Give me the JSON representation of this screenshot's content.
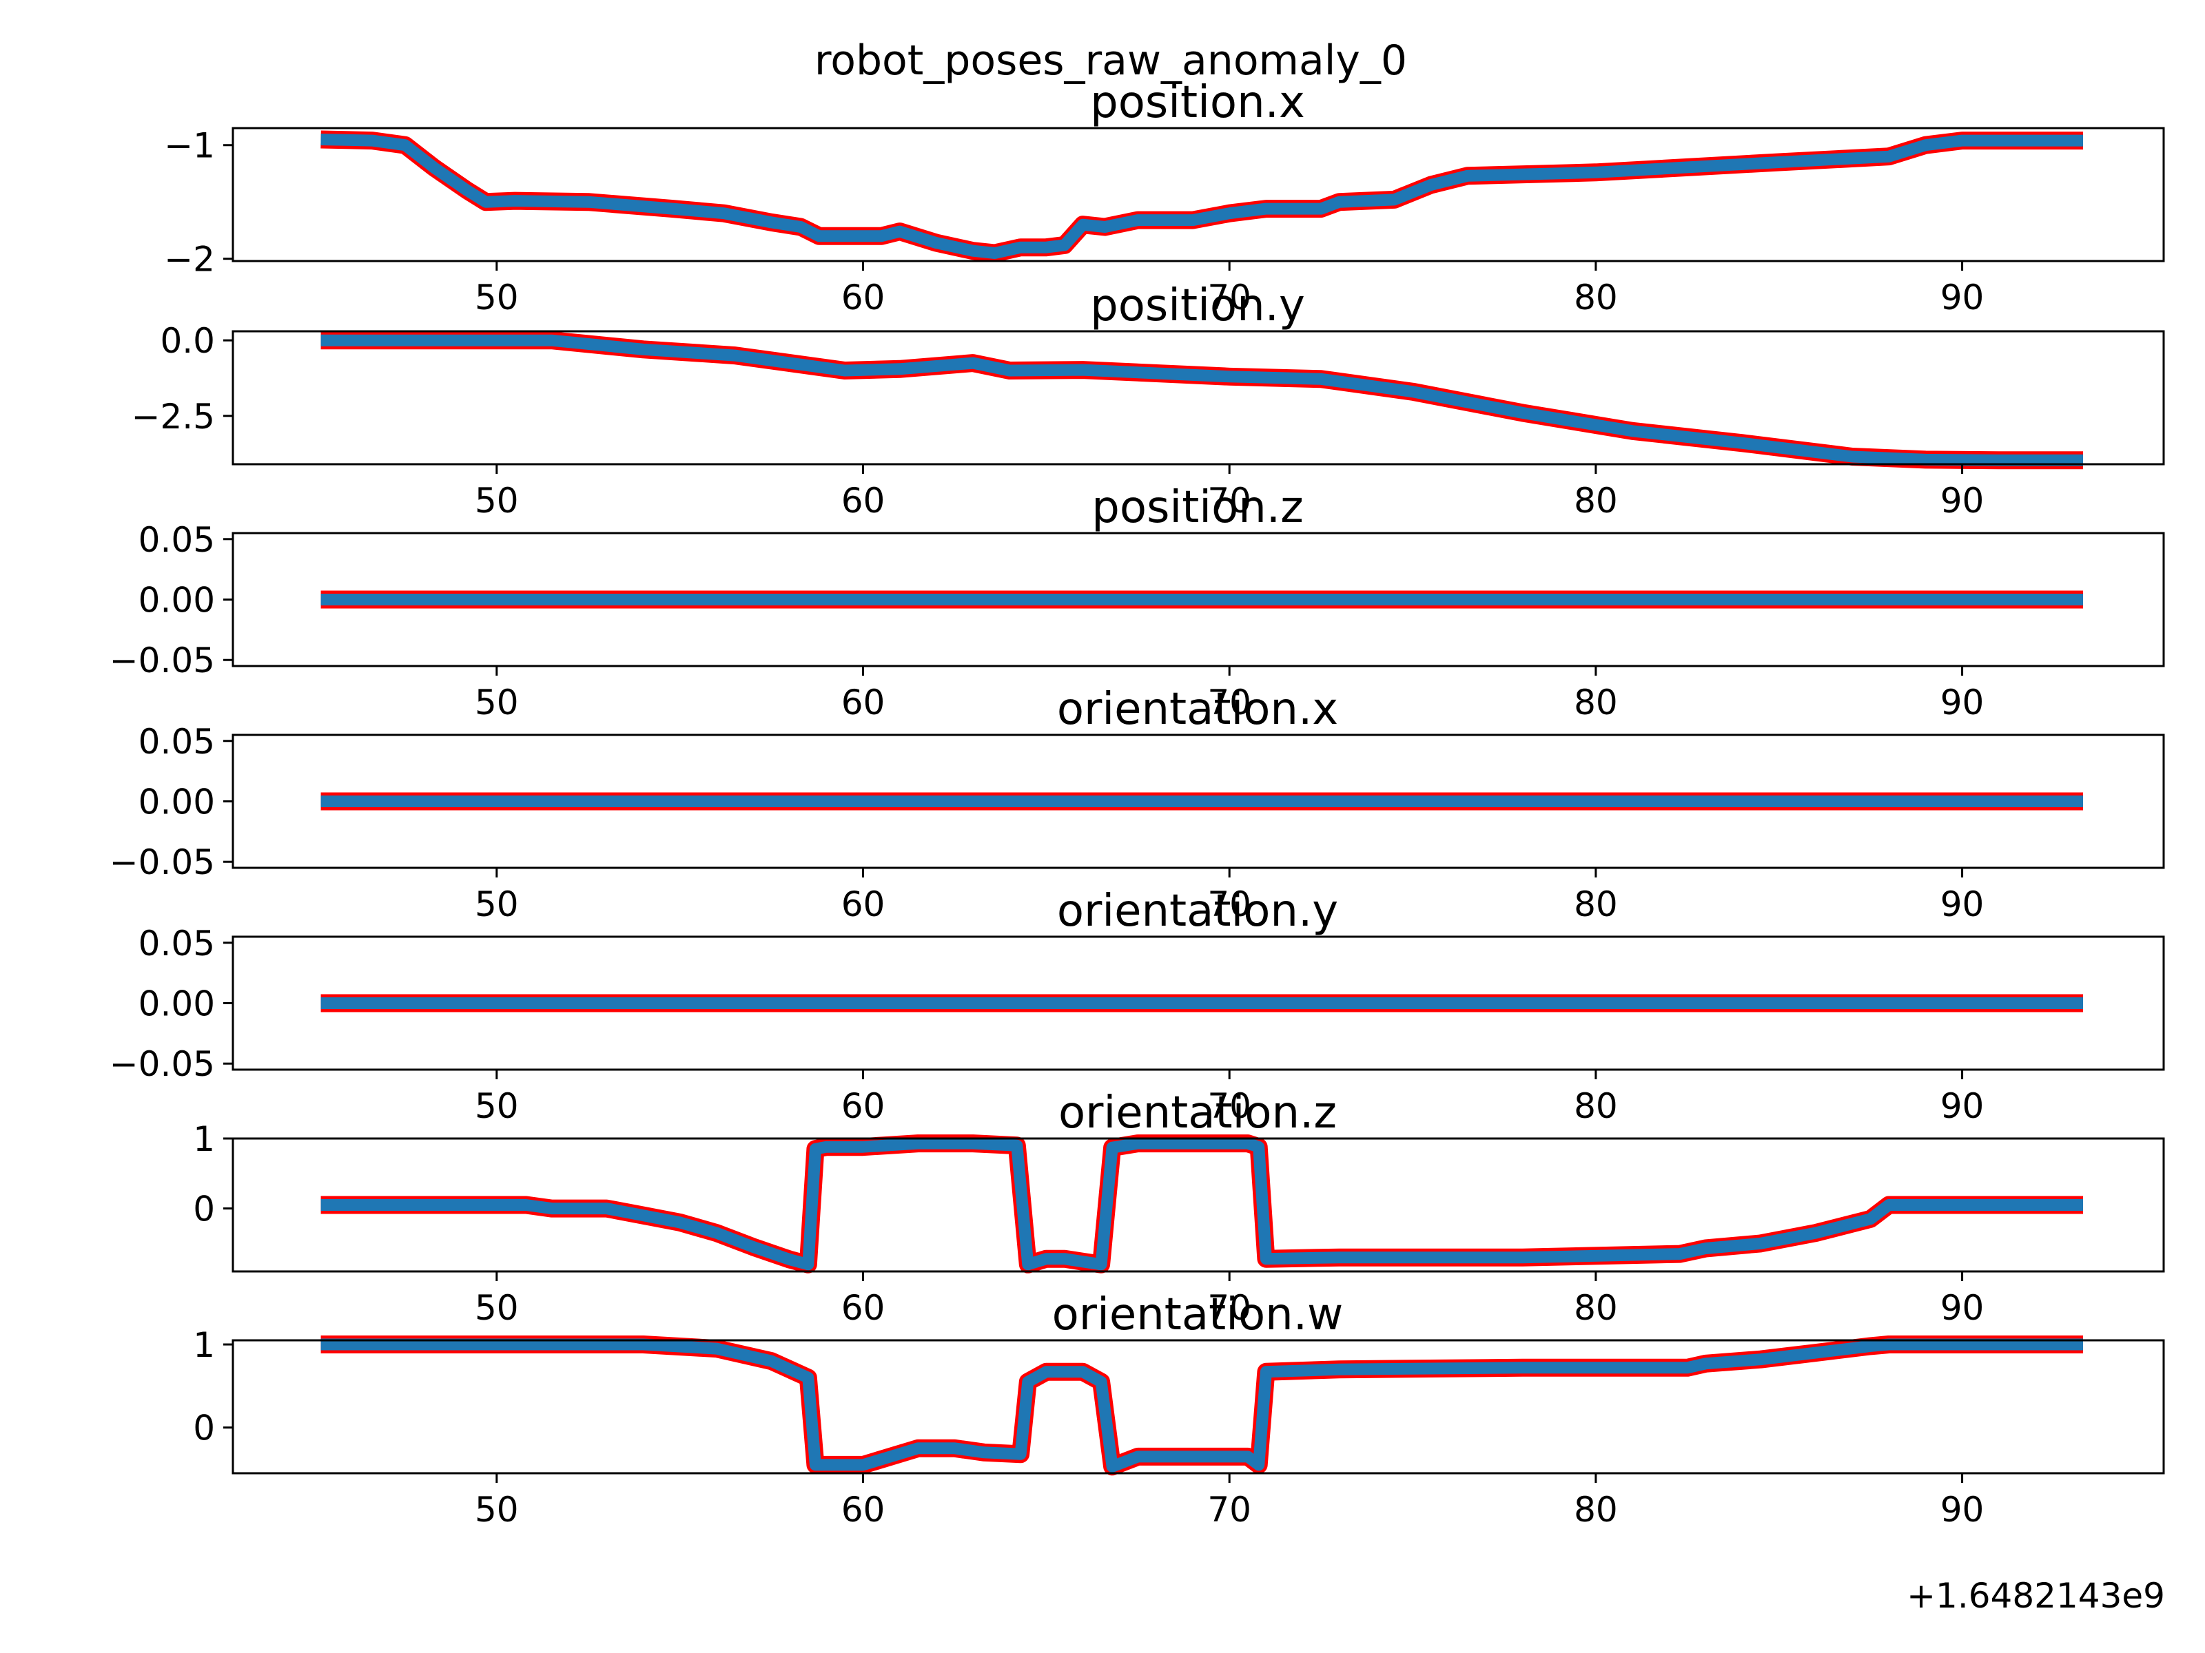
{
  "figure": {
    "title": "robot_poses_raw_anomaly_0",
    "x_offset_label": "+1.6482143e9",
    "colors": {
      "line": "#1f77b4",
      "outline": "#ff0000",
      "axes": "#000000",
      "background": "#ffffff"
    }
  },
  "chart_data": [
    {
      "type": "line",
      "title": "position.x",
      "xlim": [
        42.8,
        95.5
      ],
      "ylim": [
        -2.02,
        -0.85
      ],
      "xticks": [
        50,
        60,
        70,
        80,
        90
      ],
      "yticks": [
        -1,
        -2
      ],
      "ytick_labels": [
        "−1",
        "−2"
      ],
      "x": [
        45.2,
        46.6,
        47.5,
        48.3,
        49.2,
        49.7,
        50.5,
        52.5,
        54.8,
        56.2,
        57.5,
        58.3,
        58.8,
        59.5,
        60.5,
        61,
        62,
        63,
        63.6,
        64.3,
        65,
        65.5,
        66,
        66.6,
        67.5,
        69,
        70,
        71,
        72.5,
        73,
        74.5,
        75.5,
        76.5,
        80,
        85,
        88,
        89,
        90,
        93.3
      ],
      "y": [
        -0.95,
        -0.96,
        -1.0,
        -1.2,
        -1.4,
        -1.5,
        -1.49,
        -1.5,
        -1.56,
        -1.6,
        -1.68,
        -1.72,
        -1.8,
        -1.8,
        -1.8,
        -1.76,
        -1.86,
        -1.93,
        -1.95,
        -1.9,
        -1.9,
        -1.88,
        -1.7,
        -1.72,
        -1.66,
        -1.66,
        -1.6,
        -1.56,
        -1.56,
        -1.5,
        -1.48,
        -1.35,
        -1.27,
        -1.24,
        -1.15,
        -1.1,
        -1.0,
        -0.96,
        -0.96
      ]
    },
    {
      "type": "line",
      "title": "position.y",
      "xlim": [
        42.8,
        95.5
      ],
      "ylim": [
        -4.1,
        0.3
      ],
      "xticks": [
        50,
        60,
        70,
        80,
        90
      ],
      "yticks": [
        0.0,
        -2.5
      ],
      "ytick_labels": [
        "0.0",
        "−2.5"
      ],
      "x": [
        45.2,
        51.5,
        54,
        56.5,
        59.5,
        61,
        63,
        64,
        66,
        70,
        72.5,
        75,
        78,
        81,
        84,
        87,
        89,
        91,
        93.3
      ],
      "y": [
        0.0,
        0.0,
        -0.3,
        -0.5,
        -1.0,
        -0.95,
        -0.75,
        -1.0,
        -0.98,
        -1.2,
        -1.28,
        -1.7,
        -2.4,
        -3.0,
        -3.4,
        -3.85,
        -3.95,
        -3.97,
        -3.97
      ]
    },
    {
      "type": "line",
      "title": "position.z",
      "xlim": [
        42.8,
        95.5
      ],
      "ylim": [
        -0.055,
        0.055
      ],
      "xticks": [
        50,
        60,
        70,
        80,
        90
      ],
      "yticks": [
        0.05,
        0.0,
        -0.05
      ],
      "ytick_labels": [
        "0.05",
        "0.00",
        "−0.05"
      ],
      "x": [
        45.2,
        93.3
      ],
      "y": [
        0.0,
        0.0
      ]
    },
    {
      "type": "line",
      "title": "orientation.x",
      "xlim": [
        42.8,
        95.5
      ],
      "ylim": [
        -0.055,
        0.055
      ],
      "xticks": [
        50,
        60,
        70,
        80,
        90
      ],
      "yticks": [
        0.05,
        0.0,
        -0.05
      ],
      "ytick_labels": [
        "0.05",
        "0.00",
        "−0.05"
      ],
      "x": [
        45.2,
        93.3
      ],
      "y": [
        0.0,
        0.0
      ]
    },
    {
      "type": "line",
      "title": "orientation.y",
      "xlim": [
        42.8,
        95.5
      ],
      "ylim": [
        -0.055,
        0.055
      ],
      "xticks": [
        50,
        60,
        70,
        80,
        90
      ],
      "yticks": [
        0.05,
        0.0,
        -0.05
      ],
      "ytick_labels": [
        "0.05",
        "0.00",
        "−0.05"
      ],
      "x": [
        45.2,
        93.3
      ],
      "y": [
        0.0,
        0.0
      ]
    },
    {
      "type": "line",
      "title": "orientation.z",
      "xlim": [
        42.8,
        95.5
      ],
      "ylim": [
        -0.9,
        1.0
      ],
      "xticks": [
        50,
        60,
        70,
        80,
        90
      ],
      "yticks": [
        1,
        0
      ],
      "ytick_labels": [
        "1",
        "0"
      ],
      "x": [
        45.2,
        50.8,
        51.5,
        53,
        54,
        55,
        56,
        57,
        58,
        58.5,
        58.7,
        59,
        60,
        61.5,
        63,
        64.2,
        64.5,
        65,
        65.5,
        66,
        66.5,
        66.8,
        67.5,
        69,
        70.5,
        70.8,
        71,
        73,
        78,
        82.3,
        83,
        84.5,
        86,
        87.5,
        88,
        90,
        93.3
      ],
      "y": [
        0.05,
        0.05,
        0.0,
        0.0,
        -0.1,
        -0.2,
        -0.35,
        -0.55,
        -0.73,
        -0.8,
        0.85,
        0.88,
        0.88,
        0.93,
        0.93,
        0.9,
        -0.8,
        -0.72,
        -0.72,
        -0.76,
        -0.8,
        0.87,
        0.93,
        0.93,
        0.93,
        0.88,
        -0.72,
        -0.7,
        -0.7,
        -0.65,
        -0.57,
        -0.5,
        -0.35,
        -0.15,
        0.05,
        0.05,
        0.05
      ]
    },
    {
      "type": "line",
      "title": "orientation.w",
      "xlim": [
        42.8,
        95.5
      ],
      "ylim": [
        -0.55,
        1.05
      ],
      "xticks": [
        50,
        60,
        70,
        80,
        90
      ],
      "yticks": [
        1,
        0
      ],
      "ytick_labels": [
        "1",
        "0"
      ],
      "x": [
        45.2,
        51,
        54,
        56,
        57.5,
        58.5,
        58.7,
        59,
        60,
        61.5,
        62.5,
        63.3,
        64.3,
        64.5,
        65,
        66,
        66.5,
        66.8,
        67.5,
        70,
        70.5,
        70.8,
        71,
        73,
        78,
        82.5,
        83,
        84.5,
        86,
        87.5,
        88,
        90,
        93.3
      ],
      "y": [
        1.0,
        1.0,
        1.0,
        0.95,
        0.8,
        0.6,
        -0.45,
        -0.45,
        -0.45,
        -0.25,
        -0.25,
        -0.3,
        -0.32,
        0.55,
        0.67,
        0.67,
        0.55,
        -0.47,
        -0.35,
        -0.35,
        -0.35,
        -0.45,
        0.67,
        0.7,
        0.72,
        0.72,
        0.77,
        0.82,
        0.9,
        0.98,
        1.0,
        1.0,
        1.0
      ]
    }
  ]
}
